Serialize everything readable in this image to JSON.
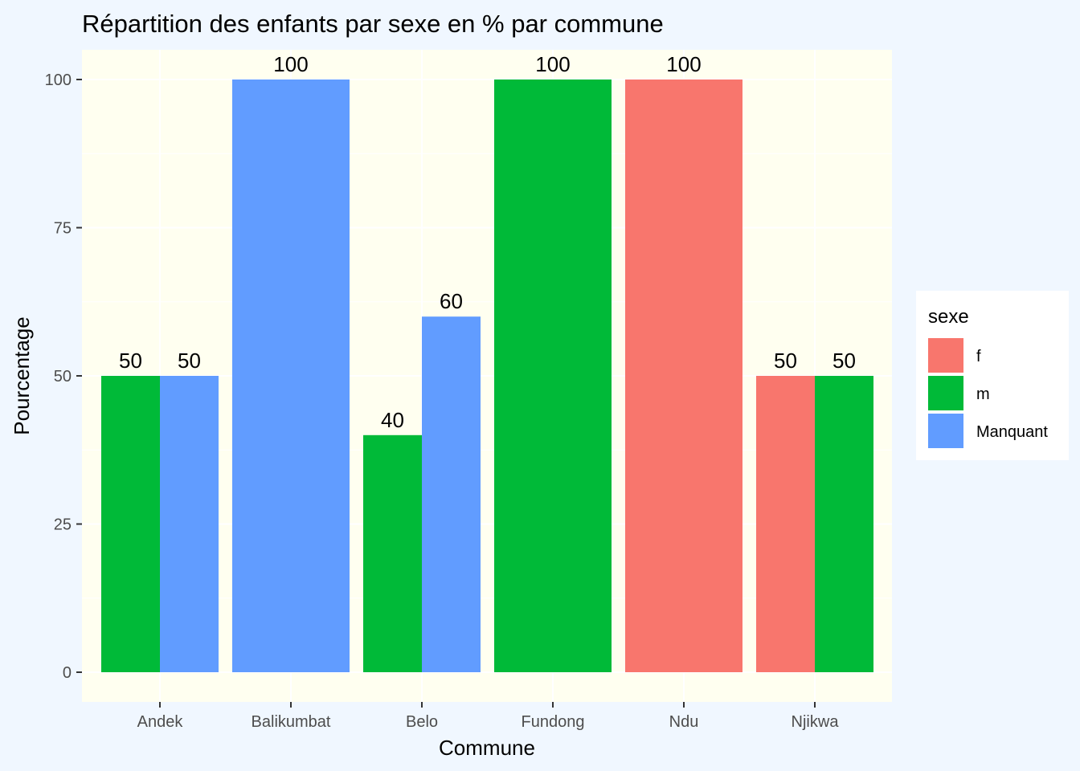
{
  "chart_data": {
    "type": "bar",
    "title": "Répartition des enfants par sexe en % par commune",
    "xlabel": "Commune",
    "ylabel": "Pourcentage",
    "ylim": [
      0,
      105
    ],
    "yticks": [
      0,
      25,
      50,
      75,
      100
    ],
    "grid": true,
    "categories": [
      "Andek",
      "Balikumbat",
      "Belo",
      "Fundong",
      "Ndu",
      "Njikwa"
    ],
    "bars": [
      {
        "category": "Andek",
        "sexe": "m",
        "value": 50,
        "label": "50"
      },
      {
        "category": "Andek",
        "sexe": "Manquant",
        "value": 50,
        "label": "50"
      },
      {
        "category": "Balikumbat",
        "sexe": "Manquant",
        "value": 100,
        "label": "100"
      },
      {
        "category": "Belo",
        "sexe": "m",
        "value": 40,
        "label": "40"
      },
      {
        "category": "Belo",
        "sexe": "Manquant",
        "value": 60,
        "label": "60"
      },
      {
        "category": "Fundong",
        "sexe": "m",
        "value": 100,
        "label": "100"
      },
      {
        "category": "Ndu",
        "sexe": "f",
        "value": 100,
        "label": "100"
      },
      {
        "category": "Njikwa",
        "sexe": "f",
        "value": 50,
        "label": "50"
      },
      {
        "category": "Njikwa",
        "sexe": "m",
        "value": 50,
        "label": "50"
      }
    ],
    "legend": {
      "title": "sexe",
      "placement": "right",
      "entries": [
        {
          "name": "f",
          "color": "#F8766D"
        },
        {
          "name": "m",
          "color": "#00BA38"
        },
        {
          "name": "Manquant",
          "color": "#619CFF"
        }
      ]
    },
    "colors": {
      "page_background": "#f0f7ff",
      "panel_background": "#fffff0",
      "grid": "#ffffff"
    }
  }
}
